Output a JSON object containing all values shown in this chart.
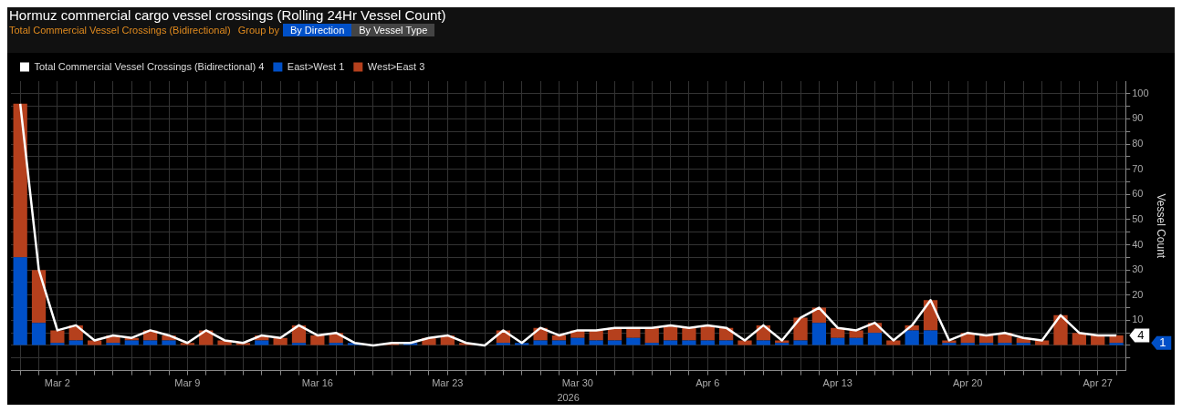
{
  "chart_data": {
    "type": "bar",
    "title": "Hormuz commercial cargo vessel crossings (Rolling 24Hr Vessel Count)",
    "subtitle": "Total Commercial Vessel Crossings (Bidirectional)",
    "annotations": [
      "Group by",
      "By Direction",
      "By Vessel Type",
      "4",
      "1"
    ],
    "xlabel": "2026",
    "ylabel": "Vessel Count",
    "stacked": true,
    "grid": true,
    "legend": "top left",
    "categories": [
      null,
      null,
      "Mar 2",
      null,
      null,
      null,
      null,
      null,
      null,
      "Mar 9",
      null,
      null,
      null,
      null,
      null,
      null,
      "Mar 16",
      null,
      null,
      null,
      null,
      null,
      null,
      "Mar 23",
      null,
      null,
      null,
      null,
      null,
      null,
      "Mar 30",
      null,
      null,
      null,
      null,
      null,
      null,
      "Apr 6",
      null,
      null,
      null,
      null,
      null,
      null,
      "Apr 13",
      null,
      null,
      null,
      null,
      null,
      null,
      "Apr 20",
      null,
      null,
      null,
      null,
      null,
      null,
      "Apr 27",
      null
    ],
    "ylim": [
      -10,
      105
    ],
    "yticks": [
      {
        "value": -5,
        "label": null
      },
      {
        "value": 0,
        "label": null
      },
      {
        "value": 5,
        "label": null
      },
      10,
      {
        "value": 15,
        "label": null
      },
      20,
      {
        "value": 25,
        "label": null
      },
      30,
      {
        "value": 35,
        "label": null
      },
      40,
      {
        "value": 45,
        "label": null
      },
      50,
      {
        "value": 55,
        "label": null
      },
      60,
      {
        "value": 65,
        "label": null
      },
      70,
      {
        "value": 75,
        "label": null
      },
      80,
      {
        "value": 85,
        "label": null
      },
      90,
      {
        "value": 95,
        "label": null
      },
      100
    ],
    "series": [
      {
        "name": "Total Commercial Vessel Crossings (Bidirectional) 4",
        "type": "line",
        "color": "#ffffff",
        "marker": "none",
        "values": [
          96,
          30,
          6,
          8,
          2,
          4,
          3,
          6,
          4,
          1,
          6,
          2,
          1,
          4,
          3,
          8,
          4,
          5,
          1,
          0,
          1,
          1,
          3,
          4,
          1,
          0,
          6,
          1,
          7,
          4,
          6,
          6,
          7,
          7,
          7,
          8,
          7,
          8,
          7,
          2,
          8,
          2,
          11,
          15,
          7,
          6,
          9,
          2,
          8,
          18,
          2,
          5,
          4,
          5,
          3,
          2,
          12,
          5,
          4,
          4
        ]
      },
      {
        "name": "East>West 1",
        "color": "#0050c8",
        "values": [
          35,
          9,
          1,
          2,
          0,
          1,
          2,
          2,
          2,
          0,
          0,
          0,
          0,
          2,
          0,
          1,
          0,
          1,
          1,
          0,
          0,
          1,
          0,
          0,
          0,
          0,
          1,
          1,
          2,
          2,
          3,
          2,
          2,
          3,
          1,
          2,
          2,
          2,
          2,
          0,
          2,
          1,
          2,
          9,
          3,
          3,
          5,
          0,
          6,
          6,
          1,
          1,
          1,
          1,
          1,
          0,
          0,
          0,
          0,
          1
        ]
      },
      {
        "name": "West>East 3",
        "color": "#b5401d",
        "values": [
          61,
          21,
          5,
          6,
          2,
          3,
          1,
          4,
          2,
          1,
          6,
          2,
          1,
          2,
          3,
          7,
          4,
          4,
          0,
          0,
          1,
          0,
          3,
          4,
          1,
          0,
          5,
          0,
          5,
          2,
          3,
          4,
          5,
          4,
          6,
          6,
          5,
          6,
          5,
          2,
          6,
          1,
          9,
          6,
          4,
          3,
          4,
          2,
          2,
          12,
          1,
          4,
          3,
          4,
          2,
          2,
          12,
          5,
          4,
          3
        ]
      }
    ]
  }
}
